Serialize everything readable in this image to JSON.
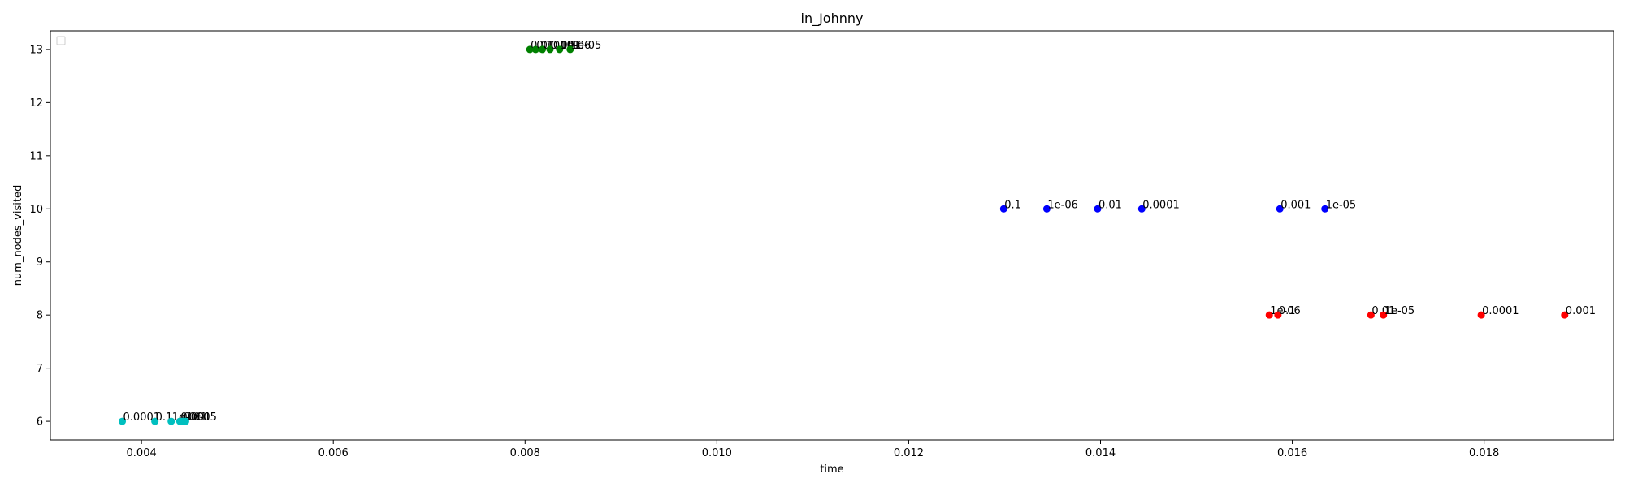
{
  "chart_data": {
    "type": "scatter",
    "title": "in_Johnny",
    "xlabel": "time",
    "ylabel": "num_nodes_visited",
    "xlim": [
      0.00305,
      0.01935
    ],
    "ylim": [
      5.65,
      13.35
    ],
    "xticks": [
      0.004,
      0.006,
      0.008,
      0.01,
      0.012,
      0.014,
      0.016,
      0.018
    ],
    "xtick_labels": [
      "0.004",
      "0.006",
      "0.008",
      "0.010",
      "0.012",
      "0.014",
      "0.016",
      "0.018"
    ],
    "yticks": [
      6,
      7,
      8,
      9,
      10,
      11,
      12,
      13
    ],
    "ytick_labels": [
      "6",
      "7",
      "8",
      "9",
      "10",
      "11",
      "12",
      "13"
    ],
    "grid": false,
    "legend": "top-left (empty)",
    "series": [
      {
        "color": "#008000",
        "points": [
          {
            "x": 0.00805,
            "y": 13,
            "label": "0.01"
          },
          {
            "x": 0.00811,
            "y": 13,
            "label": "0.1"
          },
          {
            "x": 0.00818,
            "y": 13,
            "label": "0.0001"
          },
          {
            "x": 0.00826,
            "y": 13,
            "label": "0.001"
          },
          {
            "x": 0.00836,
            "y": 13,
            "label": "1e-06"
          },
          {
            "x": 0.00847,
            "y": 13,
            "label": "1e-05"
          }
        ]
      },
      {
        "color": "#0000ff",
        "points": [
          {
            "x": 0.01299,
            "y": 10,
            "label": "0.1"
          },
          {
            "x": 0.01344,
            "y": 10,
            "label": "1e-06"
          },
          {
            "x": 0.01397,
            "y": 10,
            "label": "0.01"
          },
          {
            "x": 0.01443,
            "y": 10,
            "label": "0.0001"
          },
          {
            "x": 0.01587,
            "y": 10,
            "label": "0.001"
          },
          {
            "x": 0.01634,
            "y": 10,
            "label": "1e-05"
          }
        ]
      },
      {
        "color": "#ff0000",
        "points": [
          {
            "x": 0.01576,
            "y": 8,
            "label": "1e-06"
          },
          {
            "x": 0.01585,
            "y": 8,
            "label": "0.1"
          },
          {
            "x": 0.01682,
            "y": 8,
            "label": "0.01"
          },
          {
            "x": 0.01695,
            "y": 8,
            "label": "1e-05"
          },
          {
            "x": 0.01797,
            "y": 8,
            "label": "0.0001"
          },
          {
            "x": 0.01884,
            "y": 8,
            "label": "0.001"
          }
        ]
      },
      {
        "color": "#00bfbf",
        "points": [
          {
            "x": 0.0038,
            "y": 6,
            "label": "0.0001"
          },
          {
            "x": 0.00414,
            "y": 6,
            "label": "0.1"
          },
          {
            "x": 0.00431,
            "y": 6,
            "label": "1e-06"
          },
          {
            "x": 0.0044,
            "y": 6,
            "label": "0.001"
          },
          {
            "x": 0.00443,
            "y": 6,
            "label": "0.01"
          },
          {
            "x": 0.00446,
            "y": 6,
            "label": "1e-05"
          }
        ]
      }
    ]
  }
}
